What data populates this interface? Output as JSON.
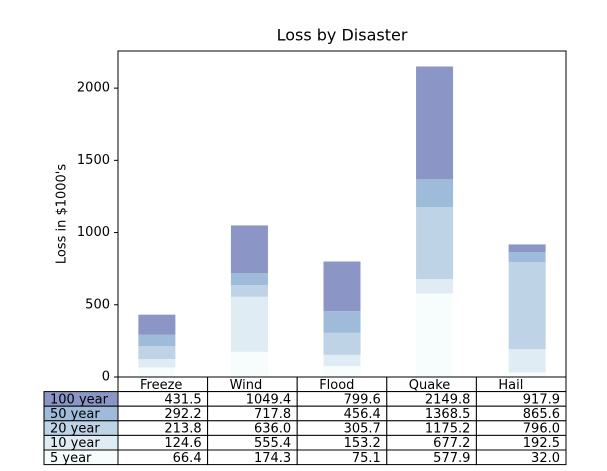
{
  "chart_data": {
    "type": "stacked_bar",
    "title": "Loss by Disaster",
    "ylabel": "Loss in $1000's",
    "categories": [
      "Freeze",
      "Wind",
      "Flood",
      "Quake",
      "Hail"
    ],
    "series": [
      {
        "name": "5 year",
        "color": "#f7fcfd",
        "values": [
          66.4,
          174.3,
          75.1,
          577.9,
          32.0
        ]
      },
      {
        "name": "10 year",
        "color": "#e0ecf4",
        "values": [
          58.2,
          381.1,
          78.0,
          99.3,
          160.5
        ]
      },
      {
        "name": "20 year",
        "color": "#bfd3e6",
        "values": [
          89.1,
          80.6,
          152.6,
          498.0,
          603.5
        ]
      },
      {
        "name": "50 year",
        "color": "#9ebcda",
        "values": [
          78.4,
          81.9,
          150.7,
          193.3,
          69.6
        ]
      },
      {
        "name": "100 year",
        "color": "#8c96c6",
        "values": [
          139.4,
          331.5,
          343.2,
          781.4,
          52.3
        ]
      }
    ],
    "cell_text": [
      [
        "431.5",
        "1049.4",
        "799.6",
        "2149.8",
        "917.9"
      ],
      [
        "292.2",
        "717.8",
        "456.4",
        "1368.5",
        "865.6"
      ],
      [
        "213.8",
        "636.0",
        "305.7",
        "1175.2",
        "796.0"
      ],
      [
        "124.6",
        "555.4",
        "153.2",
        "677.2",
        "192.5"
      ],
      [
        "66.4",
        "174.3",
        "75.1",
        "577.9",
        "32.0"
      ]
    ],
    "ylim": [
      0,
      2257
    ],
    "yticks": [
      0,
      500,
      1000,
      1500,
      2000
    ]
  }
}
